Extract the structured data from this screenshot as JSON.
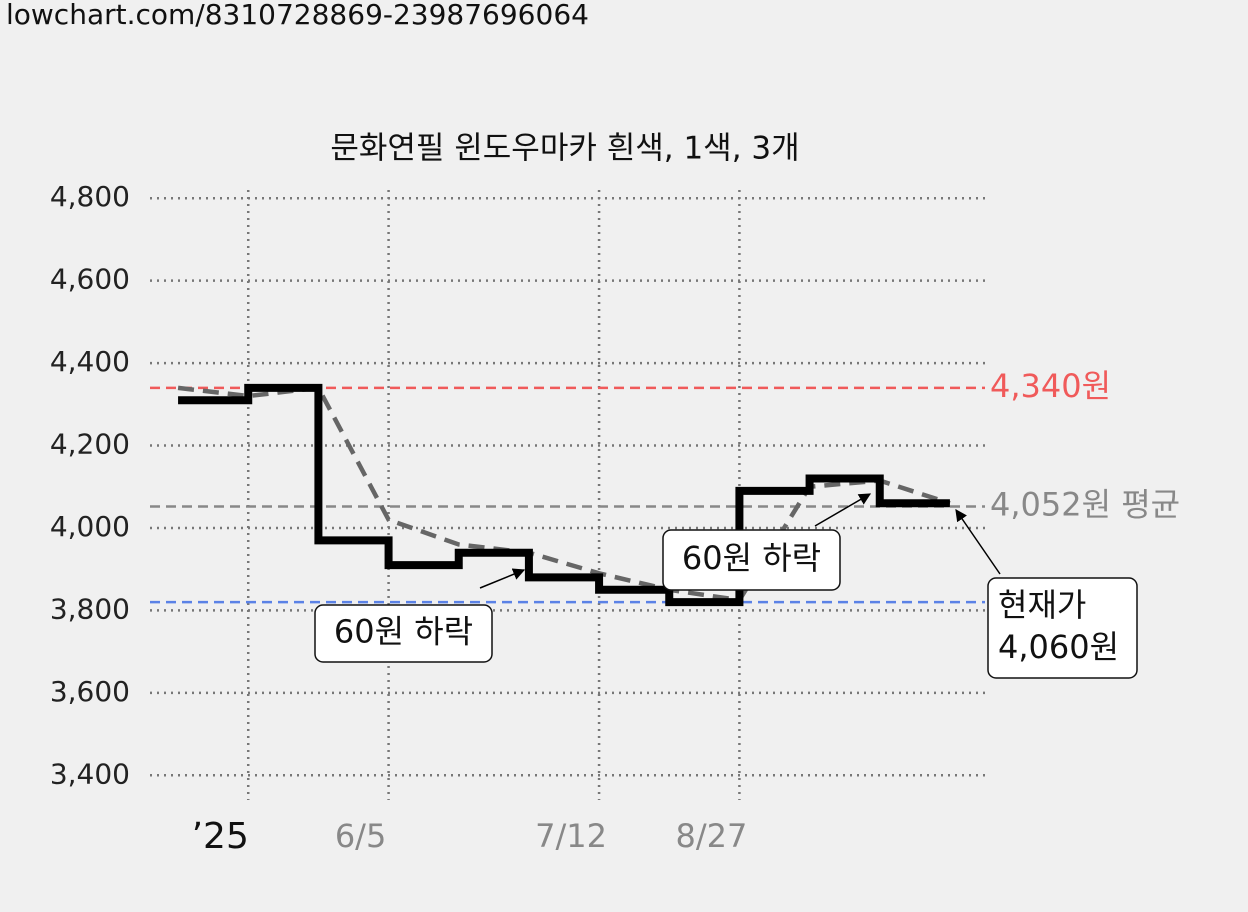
{
  "header": "lowchart.com/8310728869-23987696064",
  "chart_data": {
    "type": "line",
    "title": "문화연필 윈도우마카 흰색, 1색, 3개",
    "x": [
      0,
      1,
      2,
      3,
      4,
      5,
      6,
      7,
      8,
      9,
      10,
      11
    ],
    "series": [
      {
        "values": [
          4310,
          4340,
          3970,
          3910,
          3940,
          3880,
          3850,
          3820,
          4090,
          4120,
          4060,
          4060
        ],
        "color": "#000000",
        "step": true
      },
      {
        "values": [
          4340,
          4320,
          4340,
          4020,
          3960,
          3940,
          3890,
          3850,
          3825,
          4100,
          4115,
          4060
        ],
        "color": "#666666",
        "dashed": true
      }
    ],
    "xlim": [
      -0.4,
      11.5
    ],
    "xticks": [
      {
        "value": 1,
        "label": "’25"
      },
      {
        "value": 3,
        "label": "6/5"
      },
      {
        "value": 6,
        "label": "7/12"
      },
      {
        "value": 8,
        "label": "8/27"
      }
    ],
    "ylim": [
      3340,
      4820
    ],
    "yticks": [
      {
        "value": 3400,
        "label": "3,400"
      },
      {
        "value": 3600,
        "label": "3,600"
      },
      {
        "value": 3800,
        "label": "3,800"
      },
      {
        "value": 4000,
        "label": "4,000"
      },
      {
        "value": 4200,
        "label": "4,200"
      },
      {
        "value": 4400,
        "label": "4,400"
      },
      {
        "value": 4600,
        "label": "4,600"
      },
      {
        "value": 4800,
        "label": "4,800"
      }
    ],
    "grid": true,
    "reference_lines": [
      {
        "value": 4340,
        "label": "4,340원",
        "color": "#f05a5a"
      },
      {
        "value": 4052,
        "label": "4,052원 평균",
        "color": "#888888"
      },
      {
        "value": 3820,
        "color": "#5b82e6"
      }
    ],
    "annotations": [
      "60원 하락",
      "60원 하락",
      "현재가",
      "4,060원"
    ]
  }
}
